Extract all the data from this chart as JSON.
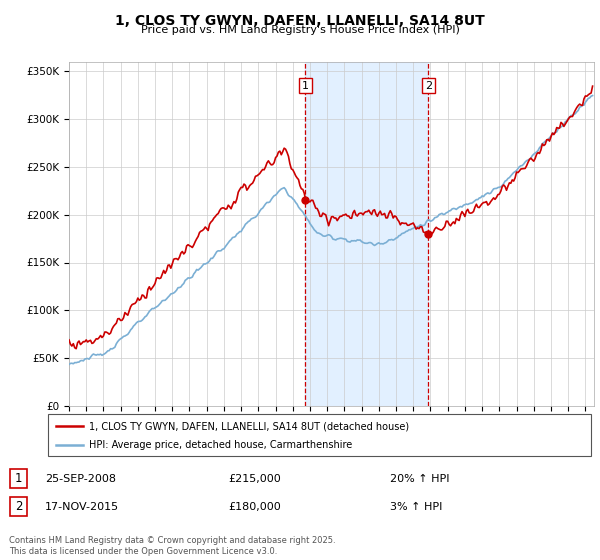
{
  "title": "1, CLOS TY GWYN, DAFEN, LLANELLI, SA14 8UT",
  "subtitle": "Price paid vs. HM Land Registry's House Price Index (HPI)",
  "legend_line1": "1, CLOS TY GWYN, DAFEN, LLANELLI, SA14 8UT (detached house)",
  "legend_line2": "HPI: Average price, detached house, Carmarthenshire",
  "sale1_date": "25-SEP-2008",
  "sale1_price": "£215,000",
  "sale1_hpi": "20% ↑ HPI",
  "sale2_date": "17-NOV-2015",
  "sale2_price": "£180,000",
  "sale2_hpi": "3% ↑ HPI",
  "footer": "Contains HM Land Registry data © Crown copyright and database right 2025.\nThis data is licensed under the Open Government Licence v3.0.",
  "red_color": "#cc0000",
  "blue_color": "#7bafd4",
  "shade_color": "#ddeeff",
  "marker1_x": 2008.73,
  "marker1_y": 215000,
  "marker2_x": 2015.88,
  "marker2_y": 180000,
  "vline1_x": 2008.73,
  "vline2_x": 2015.88,
  "ylim": [
    0,
    360000
  ],
  "xlim_start": 1995,
  "xlim_end": 2025.5
}
